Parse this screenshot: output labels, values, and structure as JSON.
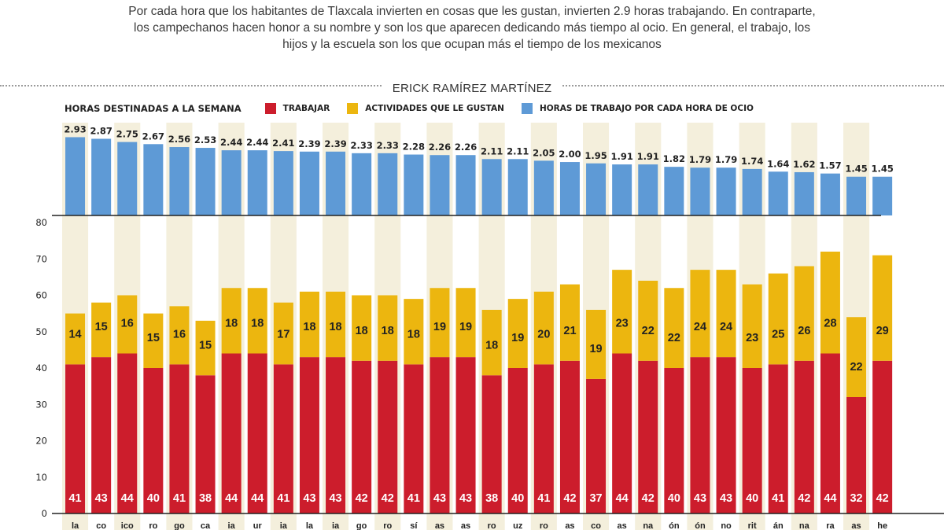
{
  "intro": "Por cada hora que los habitantes de Tlaxcala invierten en cosas que les gustan, invierten 2.9 horas trabajando. En contraparte, los campechanos hacen honor a su nombre y son los que aparecen dedicando más tiempo al ocio. En general, el trabajo, los hijos y la escuela son los que ocupan más el tiempo de los mexicanos",
  "author": "ERICK RAMÍREZ MARTÍNEZ",
  "legend": {
    "title": "HORAS DESTINADAS A LA SEMANA",
    "trabajar": "TRABAJAR",
    "ocio": "ACTIVIDADES QUE LE GUSTAN",
    "ratio": "HORAS DE TRABAJO POR CADA HORA DE OCIO"
  },
  "colors": {
    "trabajar": "#cc1d2c",
    "ocio": "#ecb60f",
    "ratio": "#5e9ad6",
    "band": "#f4efdc",
    "axis": "#222222",
    "text": "#222222"
  },
  "chart_data": [
    {
      "type": "bar",
      "title": "HORAS DE TRABAJO POR CADA HORA DE OCIO",
      "values": [
        2.93,
        2.87,
        2.75,
        2.67,
        2.56,
        2.53,
        2.44,
        2.44,
        2.41,
        2.39,
        2.39,
        2.33,
        2.33,
        2.28,
        2.26,
        2.26,
        2.11,
        2.11,
        2.05,
        2.0,
        1.95,
        1.91,
        1.91,
        1.82,
        1.79,
        1.79,
        1.74,
        1.64,
        1.62,
        1.57,
        1.45,
        1.45
      ],
      "labels": [
        "2.93",
        "2.87",
        "2.75",
        "2.67",
        "2.56",
        "2.53",
        "2.44",
        "2.44",
        "2.41",
        "2.39",
        "2.39",
        "2.33",
        "2.33",
        "2.28",
        "2.26",
        "2.26",
        "2.11",
        "2.11",
        "2.05",
        "2.00",
        "1.95",
        "1.91",
        "1.91",
        "1.82",
        "1.79",
        "1.79",
        "1.74",
        "1.64",
        "1.62",
        "1.57",
        "1.45",
        "1.45"
      ],
      "ylim": [
        0,
        3.12
      ]
    },
    {
      "type": "bar",
      "stacked": true,
      "title": "HORAS DESTINADAS A LA SEMANA",
      "categories": [
        "la",
        "co",
        "ico",
        "ro",
        "go",
        "ca",
        "ia",
        "ur",
        "ia",
        "la",
        "ia",
        "go",
        "ro",
        "sí",
        "as",
        "as",
        "ro",
        "uz",
        "ro",
        "as",
        "co",
        "as",
        "na",
        "ón",
        "ón",
        "no",
        "rit",
        "án",
        "na",
        "ra",
        "as",
        "he"
      ],
      "series": [
        {
          "name": "TRABAJAR",
          "values": [
            41,
            43,
            44,
            40,
            41,
            38,
            44,
            44,
            41,
            43,
            43,
            42,
            42,
            41,
            43,
            43,
            38,
            40,
            41,
            42,
            37,
            44,
            42,
            40,
            43,
            43,
            40,
            41,
            42,
            44,
            32,
            42
          ]
        },
        {
          "name": "ACTIVIDADES QUE LE GUSTAN",
          "values": [
            14,
            15,
            16,
            15,
            16,
            15,
            18,
            18,
            17,
            18,
            18,
            18,
            18,
            18,
            19,
            19,
            18,
            19,
            20,
            21,
            19,
            23,
            22,
            22,
            24,
            24,
            23,
            25,
            26,
            28,
            22,
            29
          ]
        }
      ],
      "yticks": [
        0,
        10,
        20,
        30,
        40,
        50,
        60,
        70,
        80
      ],
      "ylim": [
        0,
        80
      ],
      "xlabel": "",
      "ylabel": ""
    }
  ]
}
